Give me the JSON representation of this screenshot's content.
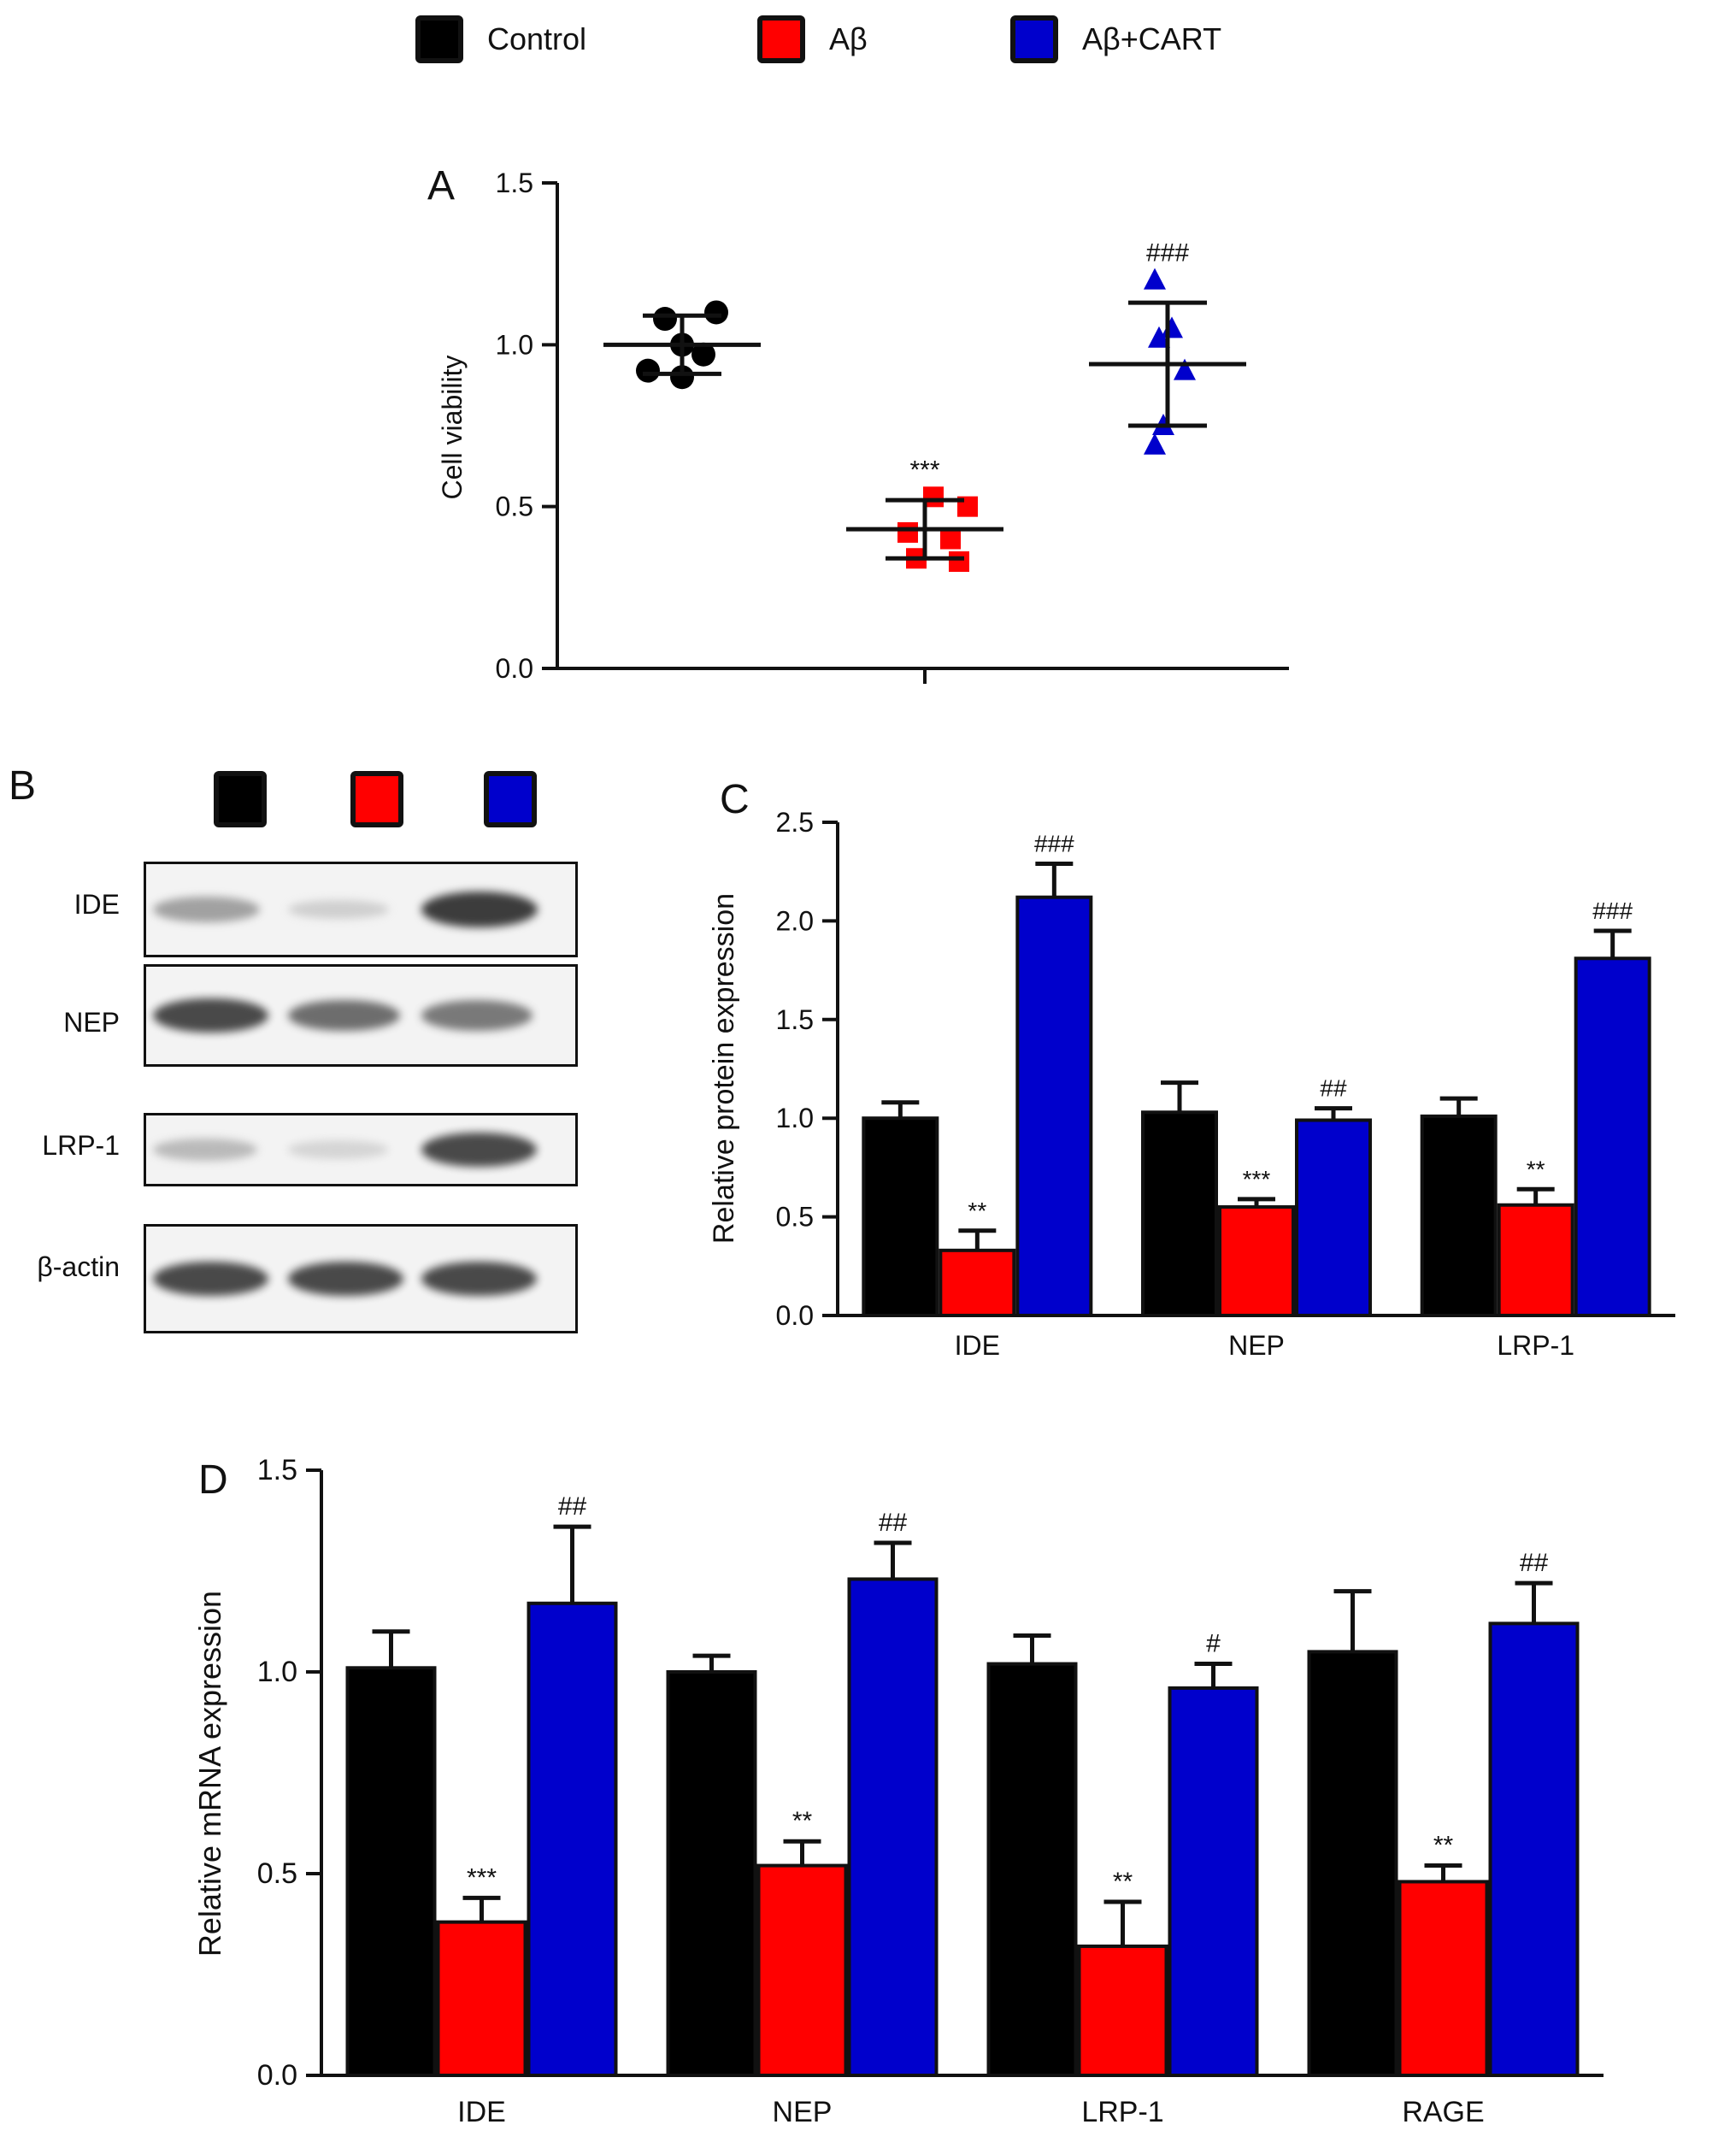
{
  "legend": [
    {
      "label": "Control",
      "color": "#000000"
    },
    {
      "label": "Aβ",
      "color": "#ff0000"
    },
    {
      "label": "Aβ+CART",
      "color": "#0000cc"
    }
  ],
  "panels": {
    "a": {
      "letter": "A"
    },
    "b": {
      "letter": "B",
      "blots": [
        {
          "label": "IDE",
          "intensities": [
            0.55,
            0.25,
            1.0
          ]
        },
        {
          "label": "NEP",
          "intensities": [
            0.95,
            0.8,
            0.75
          ]
        },
        {
          "label": "LRP-1",
          "intensities": [
            0.4,
            0.2,
            0.95
          ]
        },
        {
          "label": "β-actin",
          "intensities": [
            0.95,
            0.95,
            0.95
          ]
        }
      ]
    },
    "c": {
      "letter": "C"
    },
    "d": {
      "letter": "D"
    }
  },
  "chart_data": [
    {
      "id": "A",
      "type": "scatter",
      "ylabel": "Cell viability",
      "ylim": [
        0,
        1.5
      ],
      "yticks": [
        "0.0",
        "0.5",
        "1.0",
        "1.5"
      ],
      "groups": [
        {
          "name": "Control",
          "color": "#000000",
          "marker": "circle",
          "points": [
            1.1,
            1.08,
            1.0,
            0.92,
            0.9,
            0.97
          ],
          "mean": 1.0,
          "sd": 0.09,
          "annotation": ""
        },
        {
          "name": "Aβ",
          "color": "#ff0000",
          "marker": "square",
          "points": [
            0.53,
            0.5,
            0.42,
            0.4,
            0.34,
            0.33
          ],
          "mean": 0.43,
          "sd": 0.09,
          "annotation": "***"
        },
        {
          "name": "Aβ+CART",
          "color": "#0000cc",
          "marker": "triangle",
          "points": [
            1.2,
            1.02,
            0.92,
            0.75,
            0.69,
            1.05
          ],
          "mean": 0.94,
          "sd": 0.19,
          "annotation": "###"
        }
      ]
    },
    {
      "id": "C",
      "type": "bar",
      "ylabel": "Relative protein expression",
      "ylim": [
        0,
        2.5
      ],
      "yticks": [
        "0.0",
        "0.5",
        "1.0",
        "1.5",
        "2.0",
        "2.5"
      ],
      "categories": [
        "IDE",
        "NEP",
        "LRP-1"
      ],
      "series": [
        {
          "name": "Control",
          "color": "#000000",
          "values": [
            1.0,
            1.03,
            1.01
          ],
          "errors": [
            0.08,
            0.15,
            0.09
          ],
          "annotations": [
            "",
            "",
            ""
          ]
        },
        {
          "name": "Aβ",
          "color": "#ff0000",
          "values": [
            0.33,
            0.55,
            0.56
          ],
          "errors": [
            0.1,
            0.04,
            0.08
          ],
          "annotations": [
            "**",
            "***",
            "**"
          ]
        },
        {
          "name": "Aβ+CART",
          "color": "#0000cc",
          "values": [
            2.12,
            0.99,
            1.81
          ],
          "errors": [
            0.17,
            0.06,
            0.14
          ],
          "annotations": [
            "###",
            "##",
            "###"
          ]
        }
      ]
    },
    {
      "id": "D",
      "type": "bar",
      "ylabel": "Relative mRNA expression",
      "ylim": [
        0,
        1.5
      ],
      "yticks": [
        "0.0",
        "0.5",
        "1.0",
        "1.5"
      ],
      "categories": [
        "IDE",
        "NEP",
        "LRP-1",
        "RAGE"
      ],
      "series": [
        {
          "name": "Control",
          "color": "#000000",
          "values": [
            1.01,
            1.0,
            1.02,
            1.05
          ],
          "errors": [
            0.09,
            0.04,
            0.07,
            0.15
          ],
          "annotations": [
            "",
            "",
            "",
            ""
          ]
        },
        {
          "name": "Aβ",
          "color": "#ff0000",
          "values": [
            0.38,
            0.52,
            0.32,
            0.48
          ],
          "errors": [
            0.06,
            0.06,
            0.11,
            0.04
          ],
          "annotations": [
            "***",
            "**",
            "**",
            "**"
          ]
        },
        {
          "name": "Aβ+CART",
          "color": "#0000cc",
          "values": [
            1.17,
            1.23,
            0.96,
            1.12
          ],
          "errors": [
            0.19,
            0.09,
            0.06,
            0.1
          ],
          "annotations": [
            "##",
            "##",
            "#",
            "##"
          ]
        }
      ]
    }
  ]
}
